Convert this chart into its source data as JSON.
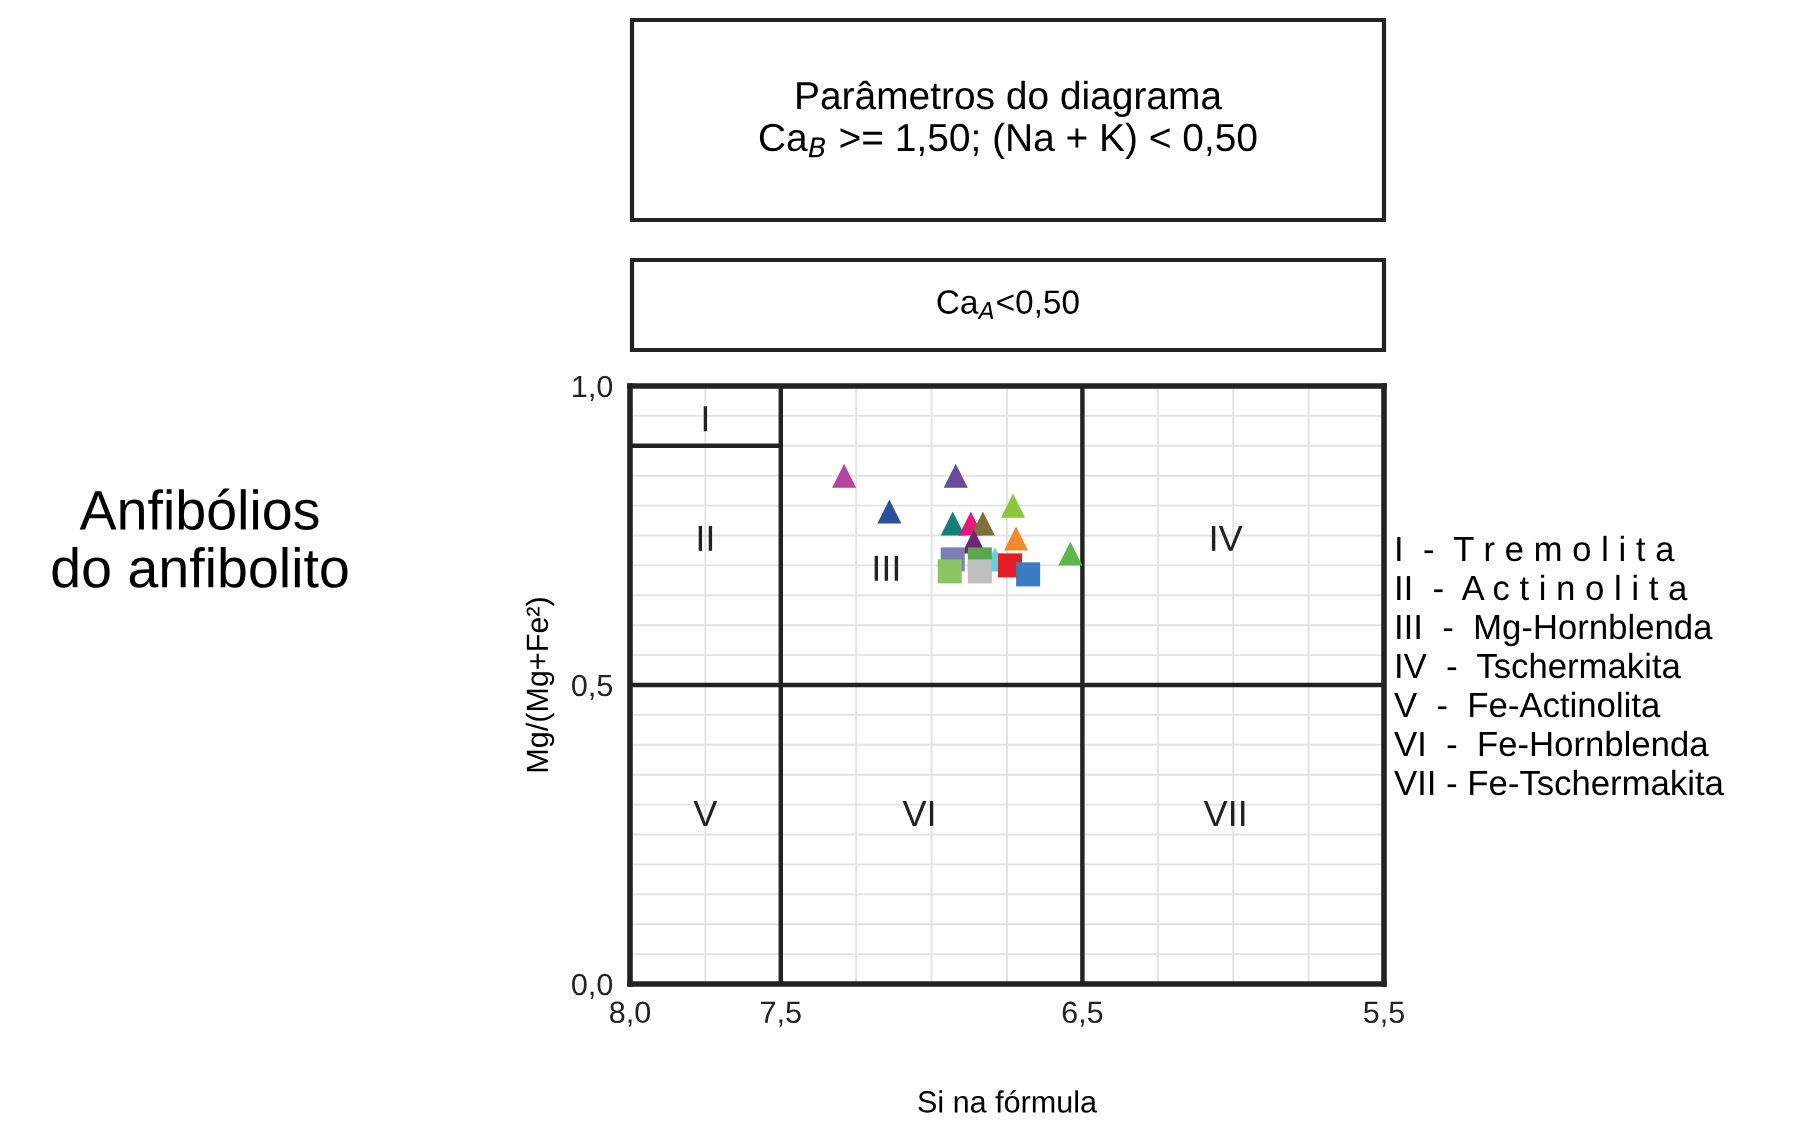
{
  "chart_data": {
    "type": "scatter",
    "xlabel": "Si na fórmula",
    "ylabel": "Mg/(Mg+Fe²)",
    "xlim": [
      8.0,
      5.5
    ],
    "ylim": [
      0.0,
      1.0
    ],
    "xticks": [
      {
        "value": 8.0,
        "label": "8,0"
      },
      {
        "value": 7.75,
        "label": null
      },
      {
        "value": 7.5,
        "label": "7,5"
      },
      {
        "value": 7.25,
        "label": null
      },
      {
        "value": 7.0,
        "label": null
      },
      {
        "value": 6.75,
        "label": null
      },
      {
        "value": 6.5,
        "label": "6,5"
      },
      {
        "value": 6.25,
        "label": null
      },
      {
        "value": 6.0,
        "label": null
      },
      {
        "value": 5.75,
        "label": null
      },
      {
        "value": 5.5,
        "label": "5,5"
      }
    ],
    "yticks": [
      {
        "value": 0.0,
        "label": "0,0"
      },
      {
        "value": 0.05,
        "label": null
      },
      {
        "value": 0.1,
        "label": null
      },
      {
        "value": 0.15,
        "label": null
      },
      {
        "value": 0.2,
        "label": null
      },
      {
        "value": 0.25,
        "label": null
      },
      {
        "value": 0.3,
        "label": null
      },
      {
        "value": 0.35,
        "label": null
      },
      {
        "value": 0.4,
        "label": null
      },
      {
        "value": 0.45,
        "label": null
      },
      {
        "value": 0.5,
        "label": "0,5"
      },
      {
        "value": 0.55,
        "label": null
      },
      {
        "value": 0.6,
        "label": null
      },
      {
        "value": 0.65,
        "label": null
      },
      {
        "value": 0.7,
        "label": null
      },
      {
        "value": 0.75,
        "label": null
      },
      {
        "value": 0.8,
        "label": null
      },
      {
        "value": 0.85,
        "label": null
      },
      {
        "value": 0.9,
        "label": null
      },
      {
        "value": 0.95,
        "label": null
      },
      {
        "value": 1.0,
        "label": "1,0"
      }
    ],
    "grid": true,
    "ref_lines": [
      {
        "axis": "x",
        "value": 7.5,
        "color": "#222222"
      },
      {
        "axis": "x",
        "value": 6.5,
        "color": "#222222"
      },
      {
        "axis": "y",
        "value": 0.5,
        "color": "#222222"
      }
    ],
    "series": [
      {
        "type": "line",
        "x": [
          8.0,
          7.5
        ],
        "values": [
          0.9,
          0.9
        ],
        "color": "#222222",
        "marker": "none"
      },
      {
        "marker": "triangle",
        "x": [
          7.29,
          6.92,
          7.14,
          6.73,
          6.93,
          6.87,
          6.83,
          6.86,
          6.72,
          6.54,
          6.79
        ],
        "values": [
          0.85,
          0.85,
          0.79,
          0.8,
          0.77,
          0.77,
          0.77,
          0.74,
          0.745,
          0.72,
          0.71
        ],
        "colors": [
          "#b2479c",
          "#6a4a9c",
          "#2a4f9c",
          "#8cc63e",
          "#137f7a",
          "#e0197b",
          "#7a7236",
          "#6b2677",
          "#f08a2a",
          "#5cb84a",
          "#5fd3d9"
        ]
      },
      {
        "marker": "square",
        "x": [
          6.93,
          6.84,
          6.94,
          6.84,
          6.74,
          6.68
        ],
        "values": [
          0.71,
          0.71,
          0.69,
          0.69,
          0.7,
          0.685
        ],
        "colors": [
          "#7a7fb8",
          "#5aa84a",
          "#8ac463",
          "#bfbfbf",
          "#e31e24",
          "#3a7cc2"
        ]
      }
    ],
    "annotations": [
      "Parâmetros do diagrama\nCa$_{B}$ >= 1,50; (Na + K) < 0,50",
      "Ca$_{A}$<0,50",
      "Anfibólios\ndo anfibolito",
      "I  -  T r e m o l i t a",
      "II  -  A c t i n o l i t a",
      "III  -  Mg-Hornblenda",
      "IV  -  Tschermakita",
      "V  -  Fe-Actinolita",
      "VI  -  Fe-Hornblenda",
      "VII - Fe-Tschermakita",
      "I",
      "II",
      "III",
      "IV",
      "V",
      "VI",
      "VII"
    ]
  }
}
